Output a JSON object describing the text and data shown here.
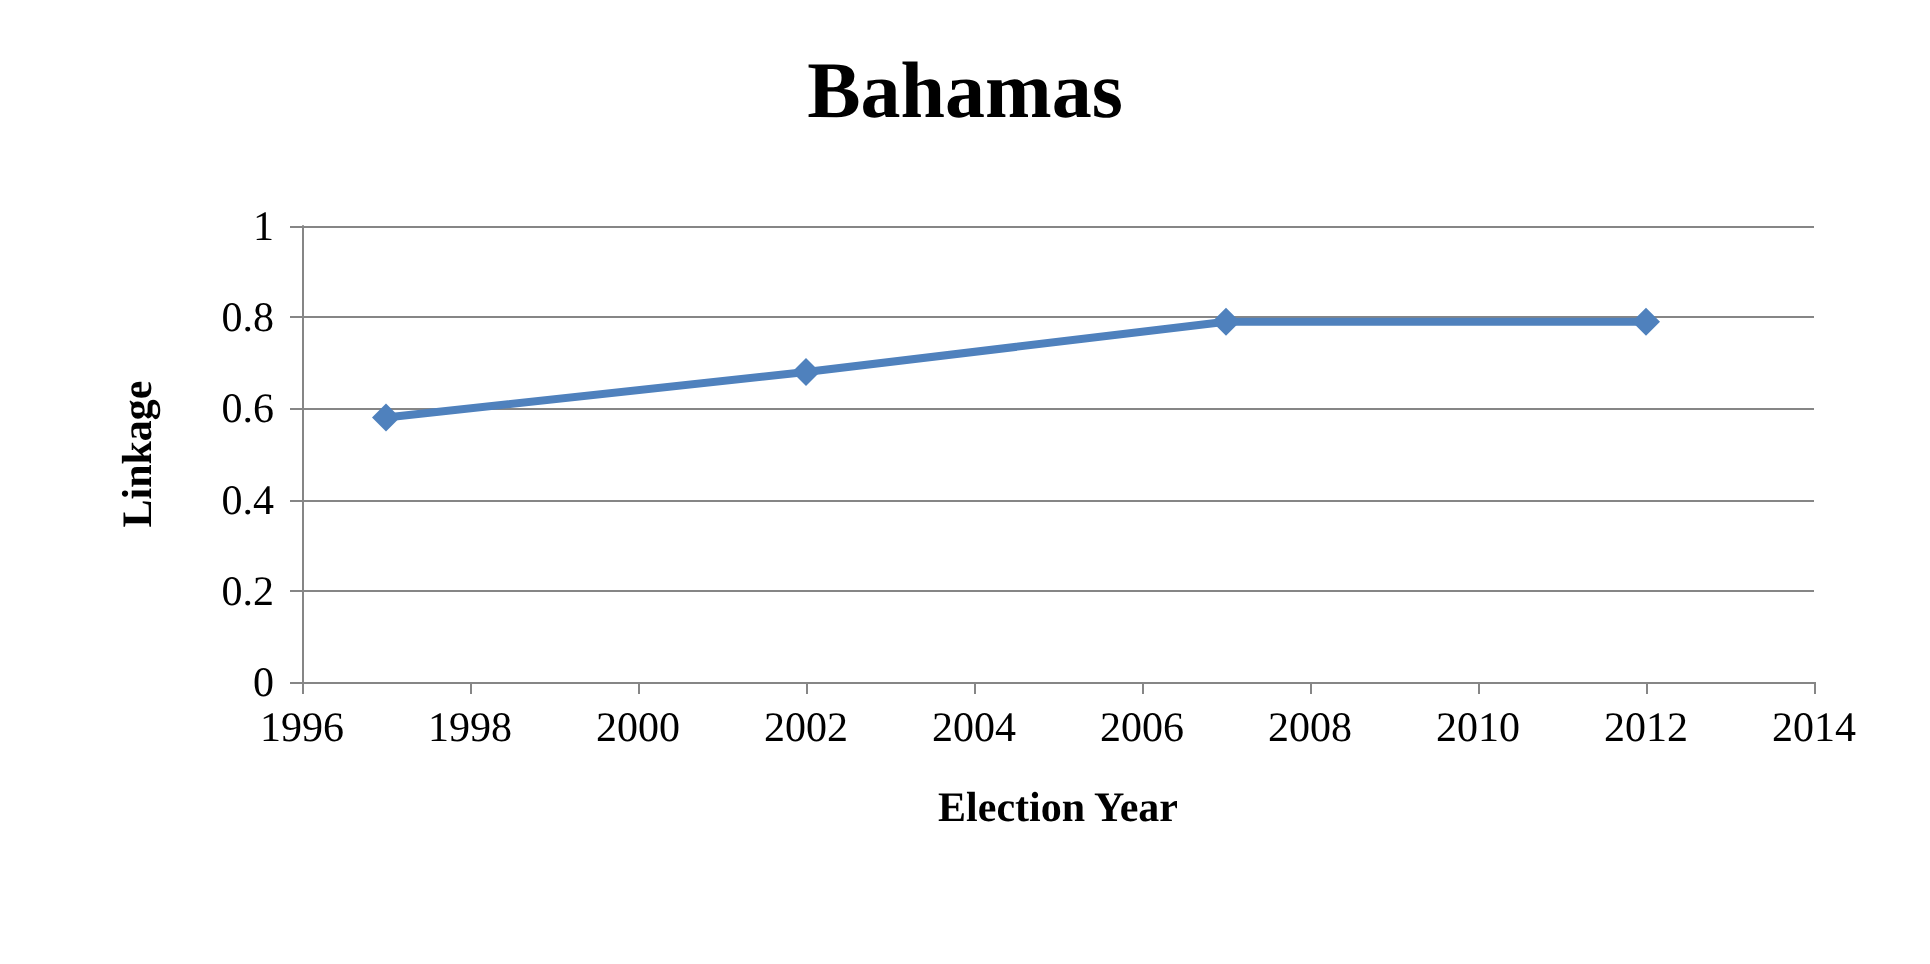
{
  "chart_data": {
    "type": "line",
    "title": "Bahamas",
    "xlabel": "Election Year",
    "ylabel": "Linkage",
    "x": [
      1997,
      2002,
      2007,
      2012
    ],
    "series": [
      {
        "color": "#4f81bd",
        "values": [
          0.58,
          0.68,
          0.79,
          0.79
        ]
      }
    ],
    "xlim": [
      1996,
      2014
    ],
    "xticks": [
      1996,
      1998,
      2000,
      2002,
      2004,
      2006,
      2008,
      2010,
      2012,
      2014
    ],
    "ylim": [
      0,
      1
    ],
    "yticks": [
      0,
      0.2,
      0.4,
      0.6,
      0.8,
      1
    ],
    "grid": "y",
    "marker": "diamond",
    "line_style": "solid"
  }
}
